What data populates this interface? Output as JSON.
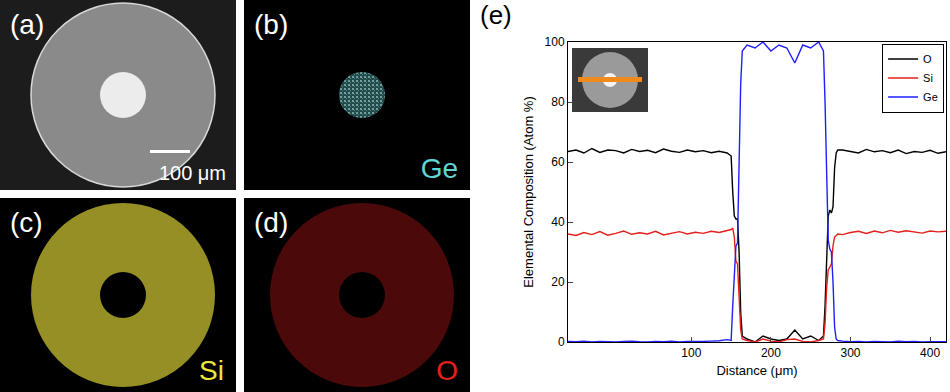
{
  "chart_data": {
    "type": "line",
    "panel_label": "(e)",
    "x_label": "Distance (μm)",
    "y_label": "Elemental Composition (Atom %)",
    "x": [
      -55,
      -45,
      -35,
      -25,
      -15,
      -5,
      5,
      15,
      25,
      35,
      45,
      55,
      65,
      75,
      85,
      95,
      105,
      115,
      125,
      135,
      145,
      150,
      152,
      154,
      156,
      158,
      160,
      162,
      164,
      170,
      180,
      190,
      200,
      210,
      220,
      230,
      240,
      250,
      260,
      266,
      268,
      270,
      272,
      274,
      276,
      278,
      280,
      282,
      284,
      290,
      300,
      310,
      320,
      330,
      340,
      350,
      360,
      370,
      380,
      390,
      400,
      410,
      420
    ],
    "series": [
      {
        "name": "O",
        "color": "#000000",
        "values": [
          63.5,
          64,
          63,
          64.5,
          63.2,
          64,
          63.8,
          63,
          64.2,
          63.5,
          63.9,
          63.1,
          64.3,
          63.6,
          63.2,
          64,
          63.4,
          63.8,
          63.1,
          63.6,
          63,
          62,
          50,
          42,
          41,
          41,
          30,
          10,
          2,
          1,
          0,
          2,
          1,
          0.5,
          1,
          4,
          1,
          2,
          0.5,
          2,
          12,
          30,
          42,
          44,
          43,
          45,
          58,
          63,
          64,
          64,
          63.5,
          63,
          64.2,
          63.4,
          63.8,
          63.1,
          64,
          62.8,
          63.5,
          63.2,
          63.9,
          62.9,
          63.4
        ]
      },
      {
        "name": "Si",
        "color": "#e3201b",
        "values": [
          36,
          35.5,
          36.5,
          35.8,
          36.8,
          35.6,
          36.2,
          37,
          35.9,
          36.4,
          36,
          36.9,
          35.7,
          36.3,
          36.8,
          36,
          36.6,
          36.2,
          36.9,
          36.5,
          37.2,
          37.5,
          38,
          35,
          27,
          26,
          15,
          4,
          1,
          0.5,
          0,
          1,
          0.3,
          0,
          0.8,
          1,
          0.2,
          0,
          0.5,
          1,
          6,
          18,
          24,
          25,
          26,
          32,
          35,
          35.5,
          36,
          35.8,
          36.5,
          36.9,
          36.2,
          37,
          36.4,
          37.2,
          36.6,
          37.1,
          36.8,
          36.3,
          37,
          36.7,
          36.9
        ]
      },
      {
        "name": "Ge",
        "color": "#1f1fff",
        "values": [
          0.2,
          0.1,
          0.3,
          0,
          0.2,
          0.1,
          0,
          0.2,
          0.3,
          0.1,
          0,
          0.2,
          0.1,
          0.3,
          0,
          0.2,
          0.1,
          0.2,
          0.3,
          0.4,
          0.8,
          0.5,
          12,
          23,
          32,
          33,
          55,
          86,
          97,
          99,
          98,
          100,
          97,
          99,
          98,
          93,
          99,
          98,
          100,
          97,
          80,
          52,
          34,
          31,
          30,
          20,
          5,
          1,
          0.5,
          0.3,
          0.1,
          0.2,
          0,
          0.2,
          0.1,
          0,
          0.3,
          0.1,
          0.2,
          0,
          0.1,
          0.2,
          0.1
        ]
      }
    ],
    "xlim": [
      -55,
      420
    ],
    "xticks": [
      100,
      200,
      300,
      400
    ],
    "ylim": [
      0,
      100
    ],
    "yticks": [
      0,
      20,
      40,
      60,
      80,
      100
    ],
    "grid": false,
    "legend": "upper right"
  },
  "panels": [
    {
      "label": "(a)",
      "scale_bar": "100 μm"
    },
    {
      "label": "(b)",
      "element": "Ge",
      "color": "#5fd6d6"
    },
    {
      "label": "(c)",
      "element": "Si",
      "color": "#f0e63c"
    },
    {
      "label": "(d)",
      "element": "O",
      "color": "#e8201c"
    }
  ]
}
